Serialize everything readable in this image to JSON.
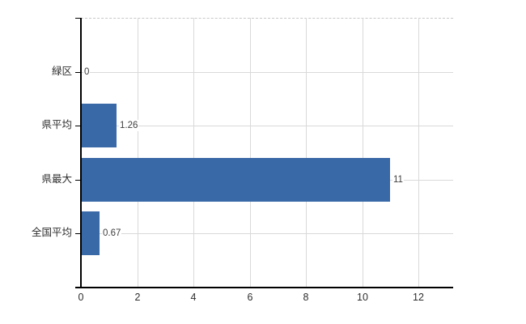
{
  "chart_data": {
    "type": "bar",
    "orientation": "horizontal",
    "title": "",
    "xlabel": "",
    "ylabel": "",
    "categories": [
      "緑区",
      "県平均",
      "県最大",
      "全国平均"
    ],
    "values": [
      0,
      1.26,
      11,
      0.67
    ],
    "value_labels": [
      "0",
      "1.26",
      "11",
      "0.67"
    ],
    "xlim": [
      0,
      13.2
    ],
    "xticks": [
      0,
      2,
      4,
      6,
      8,
      10,
      12
    ],
    "xtick_labels": [
      "0",
      "2",
      "4",
      "6",
      "8",
      "10",
      "12"
    ],
    "grid": true,
    "legend": false,
    "colors": {
      "bar": "#3a69a8",
      "gridline": "#d9d9d9",
      "plot_top_border": "#c8c8c8",
      "axis": "#000000",
      "value_label_text": "#404040",
      "axis_label_text": "#2e2e2e",
      "background": "#ffffff"
    }
  }
}
